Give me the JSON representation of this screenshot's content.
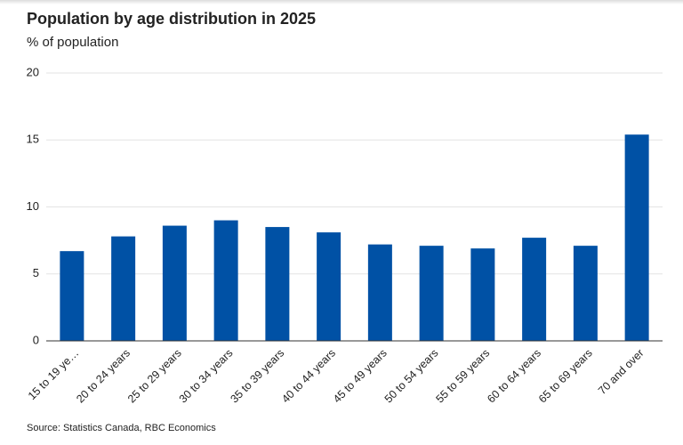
{
  "chart_data": {
    "type": "bar",
    "title": "Population by age distribution in 2025",
    "subtitle": "% of population",
    "source": "Source: Statistics Canada, RBC Economics",
    "categories": [
      "15 to 19 ye…",
      "20 to 24 years",
      "25 to 29 years",
      "30 to 34 years",
      "35 to 39 years",
      "40 to 44 years",
      "45 to 49 years",
      "50 to 54 years",
      "55 to 59 years",
      "60 to 64 years",
      "65 to 69 years",
      "70 and over"
    ],
    "values": [
      6.7,
      7.8,
      8.6,
      9.0,
      8.5,
      8.1,
      7.2,
      7.1,
      6.9,
      7.7,
      7.1,
      15.4
    ],
    "color": "#0051a5",
    "ylim": [
      0,
      20
    ],
    "yticks": [
      0,
      5,
      10,
      15,
      20
    ],
    "grid": true
  }
}
